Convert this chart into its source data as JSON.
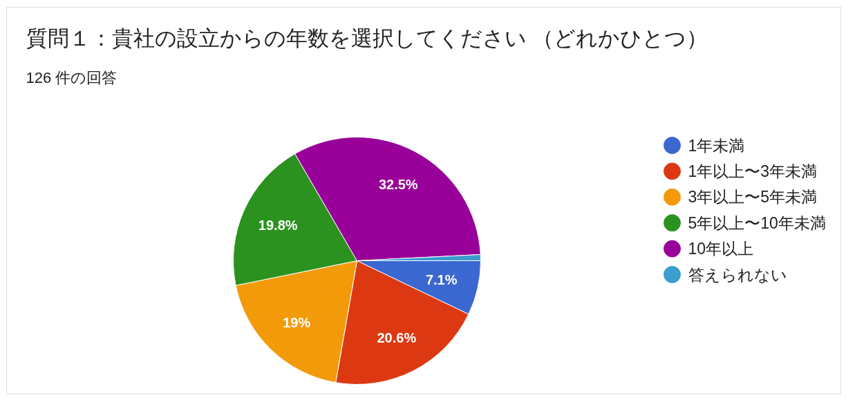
{
  "chart_data": {
    "type": "pie",
    "title": "質問１：貴社の設立からの年数を選択してください （どれかひとつ）",
    "subtitle": "126 件の回答",
    "categories": [
      "1年未満",
      "1年以上〜3年未満",
      "3年以上〜5年未満",
      "5年以上〜10年未満",
      "10年以上",
      "答えられない"
    ],
    "values": [
      7.1,
      20.6,
      19,
      19.8,
      32.5,
      0.8
    ],
    "colors": [
      "#3a67d0",
      "#dc3912",
      "#f29a0a",
      "#2b9220",
      "#990099",
      "#3c9dcf"
    ],
    "value_labels": [
      "7.1%",
      "20.6%",
      "19%",
      "19.8%",
      "32.5%",
      null
    ],
    "legend": "right"
  }
}
